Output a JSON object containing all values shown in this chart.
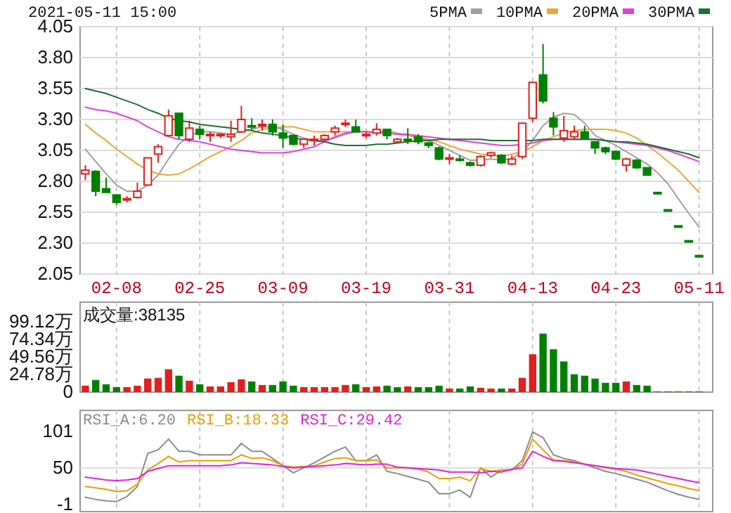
{
  "chart_data": [
    {
      "type": "candlestick",
      "title": "2021-05-11 15:00",
      "categories": [
        null,
        null,
        null,
        "02-08",
        null,
        null,
        null,
        null,
        null,
        null,
        null,
        "02-25",
        null,
        null,
        null,
        null,
        null,
        null,
        null,
        "03-09",
        null,
        null,
        null,
        null,
        null,
        null,
        null,
        "03-19",
        null,
        null,
        null,
        null,
        null,
        null,
        null,
        "03-31",
        null,
        null,
        null,
        null,
        null,
        null,
        null,
        "04-13",
        null,
        null,
        null,
        null,
        null,
        null,
        null,
        "04-23",
        null,
        null,
        null,
        null,
        null,
        null,
        null,
        "05-11"
      ],
      "ohlc": [
        [
          2.86,
          2.93,
          2.81,
          2.89
        ],
        [
          2.88,
          2.89,
          2.68,
          2.72
        ],
        [
          2.74,
          2.83,
          2.71,
          2.71
        ],
        [
          2.69,
          2.69,
          2.61,
          2.63
        ],
        [
          2.65,
          2.68,
          2.63,
          2.66
        ],
        [
          2.67,
          2.79,
          2.66,
          2.72
        ],
        [
          2.77,
          2.99,
          2.77,
          2.99
        ],
        [
          3.02,
          3.1,
          2.95,
          3.08
        ],
        [
          3.17,
          3.38,
          3.17,
          3.33
        ],
        [
          3.35,
          3.35,
          3.14,
          3.17
        ],
        [
          3.14,
          3.29,
          3.12,
          3.23
        ],
        [
          3.22,
          3.25,
          3.14,
          3.18
        ],
        [
          3.17,
          3.2,
          3.12,
          3.18
        ],
        [
          3.17,
          3.19,
          3.15,
          3.18
        ],
        [
          3.16,
          3.29,
          3.12,
          3.18
        ],
        [
          3.2,
          3.41,
          3.19,
          3.3
        ],
        [
          3.25,
          3.31,
          3.22,
          3.24
        ],
        [
          3.25,
          3.3,
          3.21,
          3.26
        ],
        [
          3.26,
          3.3,
          3.17,
          3.2
        ],
        [
          3.19,
          3.26,
          3.07,
          3.15
        ],
        [
          3.17,
          3.18,
          3.09,
          3.1
        ],
        [
          3.1,
          3.14,
          3.07,
          3.14
        ],
        [
          3.13,
          3.17,
          3.09,
          3.14
        ],
        [
          3.14,
          3.18,
          3.12,
          3.17
        ],
        [
          3.2,
          3.25,
          3.17,
          3.23
        ],
        [
          3.26,
          3.3,
          3.24,
          3.27
        ],
        [
          3.24,
          3.3,
          3.2,
          3.2
        ],
        [
          3.17,
          3.2,
          3.15,
          3.18
        ],
        [
          3.19,
          3.27,
          3.17,
          3.22
        ],
        [
          3.22,
          3.22,
          3.14,
          3.17
        ],
        [
          3.12,
          3.15,
          3.12,
          3.14
        ],
        [
          3.14,
          3.23,
          3.1,
          3.13
        ],
        [
          3.16,
          3.18,
          3.1,
          3.12
        ],
        [
          3.11,
          3.12,
          3.07,
          3.09
        ],
        [
          3.07,
          3.08,
          2.97,
          2.98
        ],
        [
          2.98,
          3.02,
          2.94,
          2.99
        ],
        [
          2.98,
          3.01,
          2.96,
          2.97
        ],
        [
          2.95,
          2.96,
          2.92,
          2.93
        ],
        [
          2.93,
          3.01,
          2.92,
          3.0
        ],
        [
          3.01,
          3.04,
          2.99,
          3.03
        ],
        [
          3.01,
          3.02,
          2.94,
          2.95
        ],
        [
          2.94,
          3.01,
          2.93,
          2.98
        ],
        [
          3.0,
          3.27,
          2.98,
          3.27
        ],
        [
          3.31,
          3.6,
          3.28,
          3.6
        ],
        [
          3.66,
          3.91,
          3.43,
          3.45
        ],
        [
          3.31,
          3.36,
          3.17,
          3.24
        ],
        [
          3.15,
          3.33,
          3.12,
          3.21
        ],
        [
          3.16,
          3.25,
          3.14,
          3.2
        ],
        [
          3.2,
          3.25,
          3.14,
          3.15
        ],
        [
          3.12,
          3.12,
          3.02,
          3.07
        ],
        [
          3.07,
          3.08,
          3.02,
          3.04
        ],
        [
          3.04,
          3.05,
          2.97,
          2.98
        ],
        [
          2.93,
          2.99,
          2.88,
          2.98
        ],
        [
          2.97,
          2.98,
          2.9,
          2.91
        ],
        [
          2.91,
          2.91,
          2.85,
          2.85
        ],
        [
          2.71,
          2.71,
          2.71,
          2.71
        ],
        [
          2.57,
          2.57,
          2.57,
          2.57
        ],
        [
          2.44,
          2.44,
          2.44,
          2.44
        ],
        [
          2.32,
          2.32,
          2.32,
          2.32
        ],
        [
          2.2,
          2.2,
          2.2,
          2.2
        ]
      ],
      "colors": [
        "#e0201f",
        "#008000",
        "#008000",
        "#008000",
        "#e0201f",
        "#e0201f",
        "#e0201f",
        "#e0201f",
        "#e0201f",
        "#008000",
        "#e0201f",
        "#008000",
        "#e0201f",
        "#e0201f",
        "#e0201f",
        "#e0201f",
        "#008000",
        "#e0201f",
        "#008000",
        "#008000",
        "#008000",
        "#e0201f",
        "#e0201f",
        "#e0201f",
        "#e0201f",
        "#e0201f",
        "#008000",
        "#e0201f",
        "#e0201f",
        "#008000",
        "#e0201f",
        "#008000",
        "#008000",
        "#008000",
        "#008000",
        "#e0201f",
        "#008000",
        "#008000",
        "#e0201f",
        "#e0201f",
        "#008000",
        "#e0201f",
        "#e0201f",
        "#e0201f",
        "#008000",
        "#008000",
        "#e0201f",
        "#e0201f",
        "#008000",
        "#008000",
        "#008000",
        "#008000",
        "#e0201f",
        "#008000",
        "#008000",
        "#008000",
        "#008000",
        "#008000",
        "#008000",
        "#008000"
      ],
      "series": [
        {
          "name": "5PMA",
          "type": "line",
          "color": "#a0a0a0",
          "values": [
            3.06,
            2.96,
            2.86,
            2.77,
            2.72,
            2.72,
            2.77,
            2.85,
            2.98,
            3.1,
            3.17,
            3.2,
            3.2,
            3.19,
            3.18,
            3.2,
            3.22,
            3.24,
            3.24,
            3.22,
            3.18,
            3.15,
            3.13,
            3.13,
            3.15,
            3.18,
            3.2,
            3.2,
            3.2,
            3.21,
            3.19,
            3.17,
            3.15,
            3.13,
            3.09,
            3.05,
            3.01,
            2.97,
            2.97,
            2.98,
            2.97,
            2.98,
            3.04,
            3.13,
            3.25,
            3.32,
            3.35,
            3.34,
            3.27,
            3.17,
            3.13,
            3.09,
            3.04,
            2.99,
            2.94,
            2.87,
            2.78,
            2.66,
            2.54,
            2.43
          ]
        },
        {
          "name": "10PMA",
          "type": "line",
          "color": "#e8a838",
          "values": [
            3.26,
            3.19,
            3.13,
            3.06,
            3.0,
            2.94,
            2.89,
            2.86,
            2.85,
            2.86,
            2.9,
            2.95,
            3.0,
            3.04,
            3.08,
            3.13,
            3.19,
            3.22,
            3.23,
            3.24,
            3.24,
            3.22,
            3.2,
            3.2,
            3.2,
            3.2,
            3.2,
            3.2,
            3.2,
            3.19,
            3.18,
            3.17,
            3.16,
            3.14,
            3.12,
            3.09,
            3.06,
            3.04,
            3.02,
            3.01,
            3.0,
            3.02,
            3.04,
            3.08,
            3.13,
            3.16,
            3.19,
            3.21,
            3.22,
            3.22,
            3.22,
            3.21,
            3.19,
            3.15,
            3.09,
            3.03,
            2.96,
            2.89,
            2.8,
            2.71
          ]
        },
        {
          "name": "20PMA",
          "type": "line",
          "color": "#e040e0",
          "values": [
            3.4,
            3.38,
            3.37,
            3.35,
            3.32,
            3.29,
            3.24,
            3.2,
            3.16,
            3.14,
            3.13,
            3.12,
            3.1,
            3.08,
            3.06,
            3.05,
            3.04,
            3.03,
            3.03,
            3.03,
            3.04,
            3.06,
            3.08,
            3.12,
            3.16,
            3.19,
            3.2,
            3.2,
            3.19,
            3.19,
            3.18,
            3.18,
            3.17,
            3.16,
            3.15,
            3.14,
            3.13,
            3.12,
            3.11,
            3.1,
            3.09,
            3.09,
            3.1,
            3.11,
            3.13,
            3.14,
            3.14,
            3.14,
            3.14,
            3.14,
            3.13,
            3.12,
            3.11,
            3.1,
            3.09,
            3.07,
            3.05,
            3.02,
            2.99,
            2.96
          ]
        },
        {
          "name": "30PMA",
          "type": "line",
          "color": "#1e6e32",
          "values": [
            3.55,
            3.53,
            3.51,
            3.48,
            3.45,
            3.42,
            3.38,
            3.35,
            3.31,
            3.29,
            3.28,
            3.26,
            3.25,
            3.24,
            3.23,
            3.22,
            3.21,
            3.19,
            3.18,
            3.17,
            3.15,
            3.14,
            3.13,
            3.12,
            3.1,
            3.09,
            3.09,
            3.09,
            3.1,
            3.1,
            3.11,
            3.12,
            3.13,
            3.13,
            3.14,
            3.14,
            3.14,
            3.14,
            3.14,
            3.13,
            3.13,
            3.13,
            3.13,
            3.13,
            3.14,
            3.14,
            3.14,
            3.14,
            3.14,
            3.14,
            3.13,
            3.12,
            3.12,
            3.11,
            3.1,
            3.08,
            3.06,
            3.04,
            3.02,
            2.99
          ]
        }
      ],
      "ylim": [
        2.05,
        4.05
      ],
      "yticks": [
        2.05,
        {
          "value": 2.3,
          "label": "2.30"
        },
        2.55,
        {
          "value": 2.8,
          "label": "2.80"
        },
        3.05,
        {
          "value": 3.3,
          "label": "3.30"
        },
        3.55,
        {
          "value": 3.8,
          "label": "3.80"
        },
        4.05
      ],
      "grid": true,
      "legend": "top right"
    },
    {
      "type": "bar",
      "title": "成交量:38135",
      "categories": [
        null,
        null,
        null,
        null,
        null,
        null,
        null,
        null,
        null,
        null,
        null,
        null,
        null,
        null,
        null,
        null,
        null,
        null,
        null,
        null,
        null,
        null,
        null,
        null,
        null,
        null,
        null,
        null,
        null,
        null,
        null,
        null,
        null,
        null,
        null,
        null,
        null,
        null,
        null,
        null,
        null,
        null,
        null,
        null,
        null,
        null,
        null,
        null,
        null,
        null,
        null,
        null,
        null,
        null,
        null,
        null,
        null,
        null,
        null,
        null
      ],
      "values": [
        9,
        17,
        11,
        7,
        7,
        9,
        19,
        20,
        32,
        23,
        16,
        11,
        8,
        8,
        14,
        18,
        15,
        10,
        10,
        15,
        9,
        7,
        7,
        7,
        7,
        10,
        11,
        7,
        8,
        9,
        7,
        8,
        7,
        7,
        9,
        5,
        5,
        8,
        6,
        5,
        5,
        5,
        20,
        53,
        82,
        60,
        43,
        25,
        23,
        19,
        13,
        13,
        15,
        10,
        9,
        1,
        1,
        1,
        1,
        1
      ],
      "colors": [
        "#e0201f",
        "#008000",
        "#008000",
        "#008000",
        "#e0201f",
        "#e0201f",
        "#e0201f",
        "#e0201f",
        "#e0201f",
        "#008000",
        "#e0201f",
        "#008000",
        "#e0201f",
        "#e0201f",
        "#e0201f",
        "#e0201f",
        "#008000",
        "#e0201f",
        "#008000",
        "#008000",
        "#008000",
        "#e0201f",
        "#e0201f",
        "#e0201f",
        "#e0201f",
        "#e0201f",
        "#008000",
        "#e0201f",
        "#e0201f",
        "#008000",
        "#008000",
        "#e0201f",
        "#008000",
        "#008000",
        "#008000",
        "#e0201f",
        "#008000",
        "#008000",
        "#e0201f",
        "#e0201f",
        "#008000",
        "#e0201f",
        "#e0201f",
        "#e0201f",
        "#008000",
        "#008000",
        "#008000",
        "#008000",
        "#008000",
        "#008000",
        "#008000",
        "#008000",
        "#e0201f",
        "#008000",
        "#008000",
        "#008000",
        "#008000",
        "#008000",
        "#008000",
        "#008000"
      ],
      "ylim": [
        0,
        126
      ],
      "yticks": [
        0,
        {
          "value": 24.78,
          "label": "24.78万"
        },
        {
          "value": 49.56,
          "label": "49.56万"
        },
        {
          "value": 74.34,
          "label": "74.34万"
        },
        {
          "value": 99.12,
          "label": "99.12万"
        }
      ],
      "grid": "x",
      "tick_labels": "y"
    },
    {
      "type": "line",
      "categories": [
        null,
        null,
        null,
        null,
        null,
        null,
        null,
        null,
        null,
        null,
        null,
        null,
        null,
        null,
        null,
        null,
        null,
        null,
        null,
        null,
        null,
        null,
        null,
        null,
        null,
        null,
        null,
        null,
        null,
        null,
        null,
        null,
        null,
        null,
        null,
        null,
        null,
        null,
        null,
        null,
        null,
        null,
        null,
        null,
        null,
        null,
        null,
        null,
        null,
        null,
        null,
        null,
        null,
        null,
        null,
        null,
        null,
        null,
        null,
        null
      ],
      "ref_lines": [
        {
          "axis": "y",
          "value": 50,
          "color": "#dcdcdc"
        }
      ],
      "series": [
        {
          "name": "RSI_A:6.20",
          "color": "#8c8c8c",
          "values": [
            9,
            6,
            4,
            3,
            10,
            24,
            70,
            75,
            90,
            73,
            73,
            68,
            68,
            68,
            68,
            84,
            73,
            73,
            63,
            53,
            43,
            50,
            57,
            65,
            73,
            79,
            60,
            60,
            68,
            45,
            42,
            38,
            34,
            30,
            14,
            14,
            19,
            9,
            50,
            37,
            47,
            47,
            60,
            100,
            92,
            68,
            63,
            60,
            55,
            50,
            45,
            42,
            38,
            34,
            30,
            24,
            18,
            13,
            9,
            6.2
          ]
        },
        {
          "name": "RSI_B:18.33",
          "color": "#e8a000",
          "values": [
            24,
            22,
            20,
            17,
            18,
            27,
            47,
            56,
            66,
            58,
            60,
            60,
            60,
            60,
            60,
            68,
            63,
            64,
            60,
            53,
            51,
            52,
            53,
            58,
            63,
            64,
            60,
            60,
            61,
            50,
            50,
            50,
            48,
            44,
            35,
            35,
            37,
            32,
            49,
            45,
            47,
            47,
            55,
            90,
            75,
            61,
            60,
            58,
            55,
            53,
            50,
            48,
            45,
            40,
            36,
            32,
            28,
            25,
            21,
            18.33
          ]
        },
        {
          "name": "RSI_C:29.42",
          "color": "#e020e0",
          "values": [
            37,
            35,
            33,
            32,
            33,
            35,
            45,
            49,
            53,
            53,
            53,
            53,
            53,
            53,
            54,
            57,
            56,
            55,
            54,
            52,
            50,
            51,
            52,
            53,
            54,
            56,
            55,
            54,
            55,
            55,
            51,
            50,
            49,
            48,
            47,
            44,
            44,
            44,
            43,
            45,
            44,
            48,
            50,
            73,
            66,
            60,
            59,
            57,
            55,
            53,
            51,
            49,
            48,
            47,
            44,
            41,
            38,
            35,
            32,
            29.42
          ]
        }
      ],
      "ylim": [
        -11,
        130
      ],
      "yticks": [
        -1,
        50,
        101
      ],
      "grid": "x",
      "legend": "top left",
      "tick_labels": "y"
    }
  ]
}
